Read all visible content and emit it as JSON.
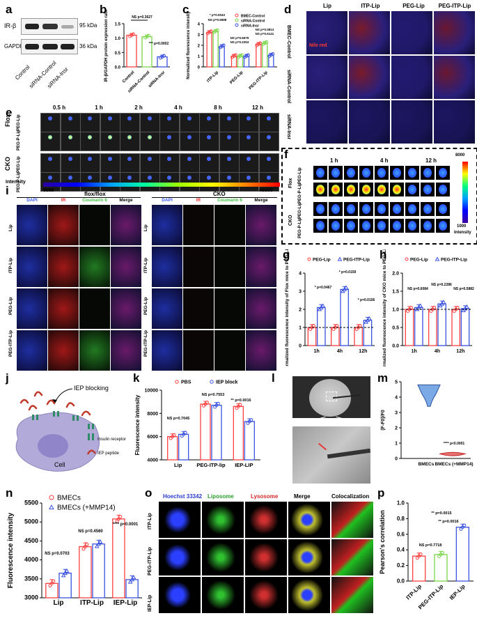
{
  "panel_letters": {
    "a": "a",
    "b": "b",
    "c": "c",
    "d": "d",
    "e": "e",
    "f": "f",
    "g": "g",
    "h": "h",
    "i": "i",
    "j": "j",
    "k": "k",
    "l": "l",
    "m": "m",
    "n": "n",
    "o": "o",
    "p": "p"
  },
  "panel_a": {
    "rows": [
      {
        "name": "IR-β",
        "size": "95 kDa"
      },
      {
        "name": "GAPDH",
        "size": "36 kDa"
      }
    ],
    "lanes": [
      "Control",
      "siRNA-Control",
      "siRNA-Insr"
    ]
  },
  "panel_b": {
    "ylabel": "IR-β/GAPDH protein expression ratio",
    "yticks": [
      "0.0",
      "0.5",
      "1.0",
      "1.5"
    ],
    "categories": [
      "Control",
      "siRNA-Control",
      "siRNA-Insr"
    ],
    "ann1": "NS p=0.3627",
    "ann2": "*** p=0.0002"
  },
  "panel_c": {
    "ylabel": "Normalized fluorescence intensity",
    "yticks": [
      "0",
      "1",
      "2",
      "3",
      "4"
    ],
    "categories": [
      "ITP-Lip",
      "PEG-Lip",
      "PEG-ITP-Lip"
    ],
    "legend": [
      "BMEC-Control",
      "siRNA-Control",
      "siRNA-Insr"
    ],
    "ann": [
      "* p=0.0043",
      "NS p=0.5598",
      "NS p=0.6579",
      "NS p=0.2253",
      "NS p=0.0813",
      "NS p=0.5141"
    ]
  },
  "panel_d": {
    "cols": [
      "Lip",
      "ITP-Lip",
      "PEG-Lip",
      "PEG-ITP-Lip"
    ],
    "rows": [
      "BMEC-Control",
      "siRNA-Control",
      "siRNA-Insr"
    ],
    "stain": "Nile red"
  },
  "panel_e": {
    "times": [
      "0.5 h",
      "1 h",
      "2 h",
      "4 h",
      "8 h",
      "12 h"
    ],
    "groups": [
      "Flox",
      "CKO"
    ],
    "rows": [
      "PEG-Lip",
      "PEG-P-Lip",
      "PEG-Lip",
      "PEG-P-Lip"
    ],
    "scale_label": "Intensity",
    "scale_min": "5000",
    "scale_max": "40000"
  },
  "panel_f": {
    "times": [
      "1 h",
      "4 h",
      "12 h"
    ],
    "groups": [
      "Flox",
      "CKO"
    ],
    "rows": [
      "PEG-Lip",
      "PEG-P-Lip",
      "PEG-Lip",
      "PEG-P-Lip"
    ],
    "scale_max": "8000",
    "scale_min": "1000",
    "scale_label": "Intensity"
  },
  "panel_i": {
    "left_title": "flox/flox",
    "right_title": "CKO",
    "channels": [
      "DAPI",
      "IR",
      "Coumarin 6",
      "Merge"
    ],
    "rows": [
      "Lip",
      "ITP-Lip",
      "PEG-Lip",
      "PEG-ITP-Lip"
    ]
  },
  "panel_g": {
    "ylabel": "Normalized fluorescence intensity of Flox mice to PEG-Lip",
    "yticks": [
      "0",
      "1",
      "2",
      "3",
      "4"
    ],
    "categories": [
      "1h",
      "4h",
      "12h"
    ],
    "legend": [
      "PEG-Lip",
      "PEG-ITP-Lip"
    ],
    "ann": [
      "* p=0.0467",
      "* p=0.0159",
      "* p=0.0156"
    ]
  },
  "panel_h": {
    "ylabel": "Normalized fluorescence intensity of CKO mice to PEG-Lip",
    "yticks": [
      "0.0",
      "0.5",
      "1.0",
      "1.5",
      "2.0"
    ],
    "categories": [
      "1h",
      "4h",
      "12h"
    ],
    "legend": [
      "PEG-Lip",
      "PEG-ITP-Lip"
    ],
    "ann": [
      "NS p=0.6084",
      "NS p=0.2286",
      "NS p=0.5882"
    ]
  },
  "panel_j": {
    "title": "IEP blocking",
    "cell": "Cell",
    "legend1": "Insulin receptor",
    "legend2": "IEP peptide"
  },
  "panel_k": {
    "ylabel": "Fluorescence intensity",
    "yticks": [
      "4000",
      "6000",
      "8000",
      "10000"
    ],
    "categories": [
      "Lip",
      "PEG-ITP-lip",
      "IEP-LIP"
    ],
    "legend": [
      "PBS",
      "IEP block"
    ],
    "ann": [
      "NS p=0.7045",
      "NS p=0.7553",
      "** p=0.0016"
    ]
  },
  "panel_m": {
    "ylabel": "(F-F0)/F0",
    "yticks": [
      "0",
      "1",
      "2",
      "3",
      "4",
      "5"
    ],
    "categories": [
      "BMECs",
      "BMECs (+MMP14)"
    ],
    "ann": "**** p<0.0001"
  },
  "panel_n": {
    "ylabel": "Fluorescence intensity",
    "yticks": [
      "3000",
      "3500",
      "4000",
      "4500",
      "5000",
      "5500"
    ],
    "categories": [
      "Lip",
      "ITP-Lip",
      "IEP-Lip"
    ],
    "legend": [
      "BMECs",
      "BMECs (+MMP14)"
    ],
    "ann": [
      "NS p=0.0703",
      "NS p=0.4560",
      "**** p<0.0001"
    ]
  },
  "panel_o": {
    "cols": [
      "Hoechst 33342",
      "Liposome",
      "Lysosome",
      "Merge",
      "Colocalization"
    ],
    "rows": [
      "ITP-Lip",
      "PEG-ITP-Lip",
      "IEP-Lip"
    ]
  },
  "panel_p": {
    "ylabel": "Pearson's correlation",
    "yticks": [
      "0.0",
      "0.2",
      "0.4",
      "0.6",
      "0.8",
      "1.0"
    ],
    "categories": [
      "ITP-Lip",
      "PEG-ITP-Lip",
      "IEP-Lip"
    ],
    "ann": [
      "NS p=0.7718",
      "** p=0.0016",
      "** p=0.0015"
    ]
  },
  "chart_data": [
    {
      "panel": "b",
      "type": "bar",
      "categories": [
        "Control",
        "siRNA-Control",
        "siRNA-Insr"
      ],
      "values": [
        1.1,
        1.05,
        0.35
      ],
      "ylim": [
        0,
        1.5
      ],
      "ylabel": "IR-β/GAPDH protein expression ratio"
    },
    {
      "panel": "c",
      "type": "bar",
      "categories": [
        "ITP-Lip",
        "PEG-Lip",
        "PEG-ITP-Lip"
      ],
      "series": [
        {
          "name": "BMEC-Control",
          "values": [
            3.2,
            1.0,
            2.1
          ]
        },
        {
          "name": "siRNA-Control",
          "values": [
            3.3,
            1.0,
            2.2
          ]
        },
        {
          "name": "siRNA-Insr",
          "values": [
            1.9,
            1.0,
            1.1
          ]
        }
      ],
      "ylim": [
        0,
        4
      ],
      "ylabel": "Normalized fluorescence intensity"
    },
    {
      "panel": "g",
      "type": "bar",
      "categories": [
        "1h",
        "4h",
        "12h"
      ],
      "series": [
        {
          "name": "PEG-Lip",
          "values": [
            1.0,
            1.0,
            1.0
          ]
        },
        {
          "name": "PEG-ITP-Lip",
          "values": [
            2.1,
            3.1,
            1.4
          ]
        }
      ],
      "ylim": [
        0,
        4
      ],
      "ylabel": "Normalized fluorescence intensity of Flox mice to PEG-Lip"
    },
    {
      "panel": "h",
      "type": "bar",
      "categories": [
        "1h",
        "4h",
        "12h"
      ],
      "series": [
        {
          "name": "PEG-Lip",
          "values": [
            1.0,
            1.0,
            1.0
          ]
        },
        {
          "name": "PEG-ITP-Lip",
          "values": [
            1.05,
            1.15,
            1.02
          ]
        }
      ],
      "ylim": [
        0,
        2
      ],
      "ylabel": "Normalized fluorescence intensity of CKO mice to PEG-Lip"
    },
    {
      "panel": "k",
      "type": "bar",
      "categories": [
        "Lip",
        "PEG-ITP-lip",
        "IEP-LIP"
      ],
      "series": [
        {
          "name": "PBS",
          "values": [
            6000,
            8800,
            8600
          ]
        },
        {
          "name": "IEP block",
          "values": [
            6200,
            8700,
            7300
          ]
        }
      ],
      "ylim": [
        4000,
        10000
      ],
      "ylabel": "Fluorescence intensity"
    },
    {
      "panel": "n",
      "type": "bar",
      "categories": [
        "Lip",
        "ITP-Lip",
        "IEP-Lip"
      ],
      "series": [
        {
          "name": "BMECs",
          "values": [
            3380,
            4350,
            5080
          ]
        },
        {
          "name": "BMECs (+MMP14)",
          "values": [
            3650,
            4420,
            3480
          ]
        }
      ],
      "ylim": [
        3000,
        5500
      ],
      "ylabel": "Fluorescence intensity"
    },
    {
      "panel": "p",
      "type": "bar",
      "categories": [
        "ITP-Lip",
        "PEG-ITP-Lip",
        "IEP-Lip"
      ],
      "values": [
        0.32,
        0.34,
        0.69
      ],
      "ylim": [
        0,
        1.0
      ],
      "ylabel": "Pearson's correlation"
    }
  ]
}
